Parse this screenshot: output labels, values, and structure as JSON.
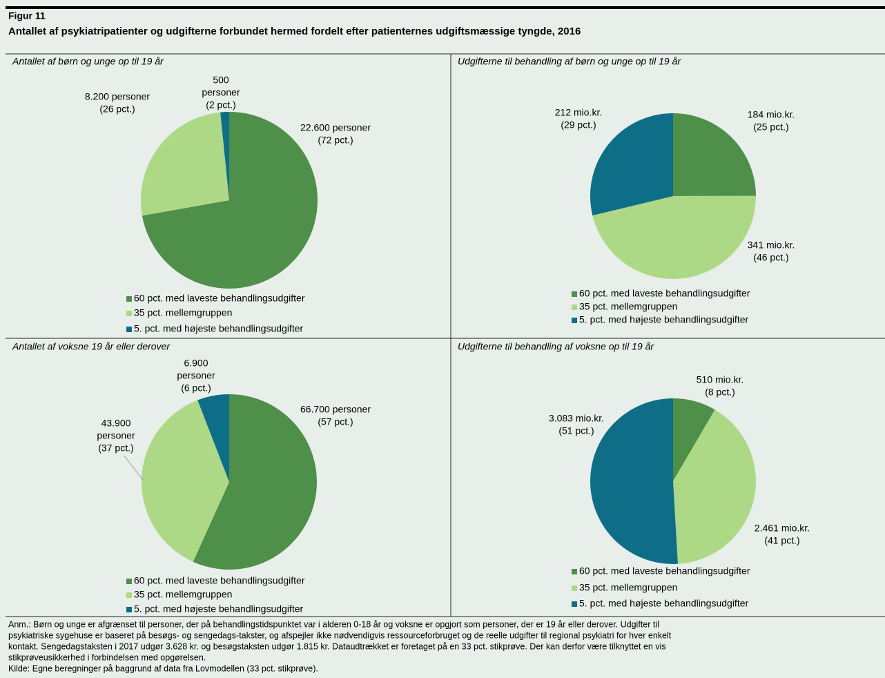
{
  "header": {
    "label": "Figur 11",
    "title": "Antallet af psykiatripatienter og udgifterne forbundet hermed fordelt efter patienternes udgiftsmæssige tyngde, 2016"
  },
  "chart_data": [
    {
      "type": "pie",
      "title": "Antallet af børn og unge op til 19 år",
      "categories": [
        "60 pct. med laveste behandlingsudgifter",
        "35 pct. mellemgruppen",
        "5. pct. med højeste behandlingsudgifter"
      ],
      "values": [
        22600,
        8200,
        500
      ],
      "value_labels": [
        [
          "22.600 personer",
          "(72 pct.)"
        ],
        [
          "8.200 personer",
          "(26 pct.)"
        ],
        [
          "500",
          "personer",
          "(2 pct.)"
        ]
      ],
      "colors": [
        "#4e8f4a",
        "#add987",
        "#0e6e87"
      ]
    },
    {
      "type": "pie",
      "title": "Udgifterne til behandling af børn og unge op til 19 år",
      "categories": [
        "60 pct. med laveste behandlingsudgifter",
        "35 pct. mellemgruppen",
        "5. pct. med højeste behandlingsudgifter"
      ],
      "values": [
        184,
        341,
        212
      ],
      "value_labels": [
        [
          "184 mio.kr.",
          "(25 pct.)"
        ],
        [
          "341 mio.kr.",
          "(46 pct.)"
        ],
        [
          "212 mio.kr.",
          "(29 pct.)"
        ]
      ],
      "colors": [
        "#4e8f4a",
        "#add987",
        "#0e6e87"
      ]
    },
    {
      "type": "pie",
      "title": "Antallet af voksne 19 år eller derover",
      "categories": [
        "60 pct. med laveste behandlingsudgifter",
        "35 pct. mellemgruppen",
        "5. pct. med højeste behandlingsudgifter"
      ],
      "values": [
        66700,
        43900,
        6900
      ],
      "value_labels": [
        [
          "66.700 personer",
          "(57 pct.)"
        ],
        [
          "43.900",
          "personer",
          "(37 pct.)"
        ],
        [
          "6.900",
          "personer",
          "(6 pct.)"
        ]
      ],
      "colors": [
        "#4e8f4a",
        "#add987",
        "#0e6e87"
      ]
    },
    {
      "type": "pie",
      "title": "Udgifterne til behandling af voksne op til 19 år",
      "categories": [
        "60 pct. med laveste behandlingsudgifter",
        "35 pct. mellemgruppen",
        "5. pct. med højeste behandlingsudgifter"
      ],
      "values": [
        510,
        2461,
        3083
      ],
      "value_labels": [
        [
          "510 mio.kr.",
          "(8 pct.)"
        ],
        [
          "2.461 mio.kr.",
          "(41 pct.)"
        ],
        [
          "3.083 mio.kr.",
          "(51 pct.)"
        ]
      ],
      "colors": [
        "#4e8f4a",
        "#add987",
        "#0e6e87"
      ]
    }
  ],
  "notes": [
    "Anm.: Børn og unge er afgrænset til personer, der på behandlingstidspunktet var i alderen 0-18 år og voksne er opgjort som personer, der er 19 år eller derover. Udgifter til",
    "psykiatriske sygehuse er baseret på besøgs- og sengedags-takster, og afspejler ikke nødvendigvis ressourceforbruget og de reelle udgifter til regional psykiatri for hver enkelt",
    "kontakt. Sengedagstaksten i 2017 udgør 3.628 kr. og besøgstaksten udgør 1.815 kr. Dataudtrækket er foretaget på en 33 pct. stikprøve. Der kan derfor være tilknyttet en vis",
    "stikprøveusikkerhed i forbindelsen med opgørelsen.",
    "Kilde: Egne beregninger på baggrund af data fra Lovmodellen (33 pct. stikprøve)."
  ]
}
